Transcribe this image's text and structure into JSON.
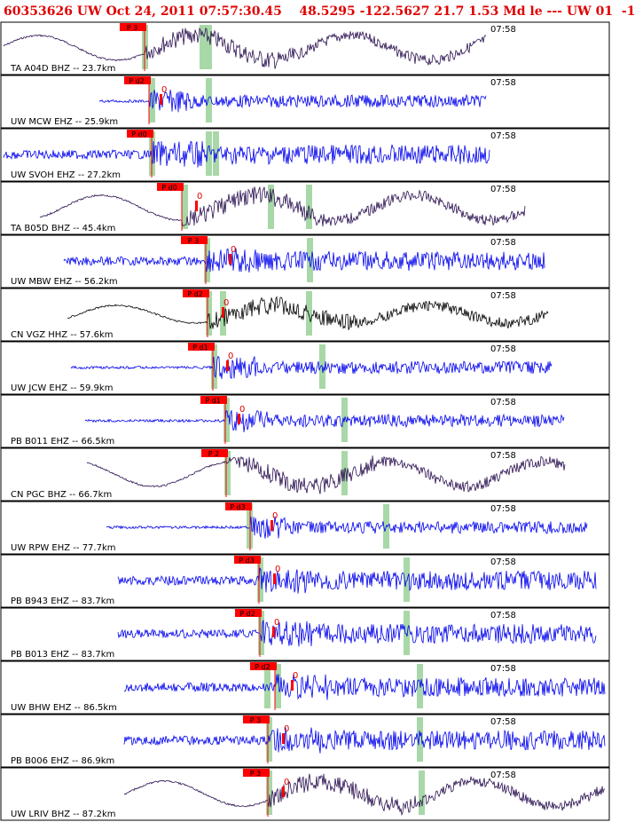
{
  "header": {
    "title": "60353626 UW Oct 24, 2011 07:57:30.45    48.5295 -122.5627 21.7 1.53 Md le --- UW 01  -1"
  },
  "colors": {
    "title": "#e00000",
    "trace_blue": "#0000ee",
    "trace_purple": "#2a1050",
    "trace_black": "#000000",
    "pick_box": "#ff0000",
    "phase_band": "#a8d8a8",
    "frame": "#000000"
  },
  "traces": [
    {
      "label": "TA A04D BHZ -- 23.7km",
      "time": "07:58",
      "pick": "P 3",
      "zero": "",
      "color": "purple",
      "style": "lowfreq"
    },
    {
      "label": "UW MCW EHZ -- 25.9km",
      "time": "07:58",
      "pick": "P d2",
      "zero": "0",
      "color": "blue",
      "style": "quiet"
    },
    {
      "label": "UW SVOH EHZ -- 27.2km",
      "time": "07:58",
      "pick": "P d0",
      "zero": "",
      "color": "blue",
      "style": "noisy"
    },
    {
      "label": "TA B05D BHZ -- 45.4km",
      "time": "07:58",
      "pick": "P d0",
      "zero": "0",
      "color": "purple",
      "style": "lowfreq"
    },
    {
      "label": "UW MBW EHZ -- 56.2km",
      "time": "07:58",
      "pick": "P 3",
      "zero": "0",
      "color": "blue",
      "style": "noisy"
    },
    {
      "label": "CN VGZ HHZ -- 57.6km",
      "time": "07:58",
      "pick": "P d2",
      "zero": "0",
      "color": "black",
      "style": "lowfreq"
    },
    {
      "label": "UW JCW EHZ -- 59.9km",
      "time": "07:58",
      "pick": "P d1",
      "zero": "0",
      "color": "blue",
      "style": "quiet"
    },
    {
      "label": "PB B011 EHZ -- 66.5km",
      "time": "07:58",
      "pick": "P d1",
      "zero": "0",
      "color": "blue",
      "style": "quiet"
    },
    {
      "label": "CN PGC BHZ -- 66.7km",
      "time": "07:58",
      "pick": "P 2",
      "zero": "",
      "color": "purple",
      "style": "lowfreq"
    },
    {
      "label": "UW RPW EHZ -- 77.7km",
      "time": "07:58",
      "pick": "P d3",
      "zero": "0",
      "color": "blue",
      "style": "quiet"
    },
    {
      "label": "PB B943 EHZ -- 83.7km",
      "time": "07:58",
      "pick": "P d3",
      "zero": "0",
      "color": "blue",
      "style": "noisy"
    },
    {
      "label": "PB B013 EHZ -- 83.7km",
      "time": "07:58",
      "pick": "P d2",
      "zero": "0",
      "color": "blue",
      "style": "noisy"
    },
    {
      "label": "UW BHW EHZ -- 86.5km",
      "time": "07:58",
      "pick": "P d2",
      "zero": "0",
      "color": "blue",
      "style": "noisy"
    },
    {
      "label": "PB B006 EHZ -- 86.9km",
      "time": "07:58",
      "pick": "P 3",
      "zero": "0",
      "color": "blue",
      "style": "noisy"
    },
    {
      "label": "UW LRIV BHZ -- 87.2km",
      "time": "07:58",
      "pick": "P 3",
      "zero": "0",
      "color": "purple",
      "style": "lowfreq"
    }
  ]
}
